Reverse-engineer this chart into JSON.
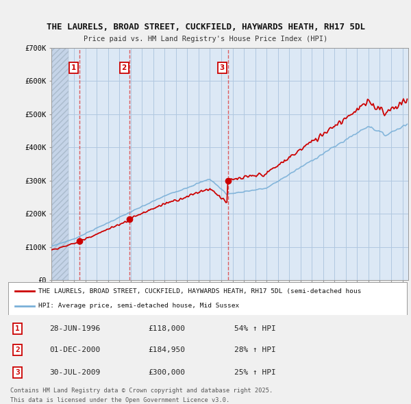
{
  "title_line1": "THE LAURELS, BROAD STREET, CUCKFIELD, HAYWARDS HEATH, RH17 5DL",
  "title_line2": "Price paid vs. HM Land Registry's House Price Index (HPI)",
  "ylim": [
    0,
    700000
  ],
  "yticks": [
    0,
    100000,
    200000,
    300000,
    400000,
    500000,
    600000,
    700000
  ],
  "ytick_labels": [
    "£0",
    "£100K",
    "£200K",
    "£300K",
    "£400K",
    "£500K",
    "£600K",
    "£700K"
  ],
  "xlim_start": 1994.0,
  "xlim_end": 2025.5,
  "price_paid_color": "#cc0000",
  "hpi_color": "#7ab0d8",
  "sale_marker_color": "#cc0000",
  "vline_color": "#dd4444",
  "background_color": "#f0f0f0",
  "plot_bg_color": "#dce8f5",
  "hatch_color": "#c0c8d8",
  "legend_label_red": "THE LAURELS, BROAD STREET, CUCKFIELD, HAYWARDS HEATH, RH17 5DL (semi-detached hous",
  "legend_label_blue": "HPI: Average price, semi-detached house, Mid Sussex",
  "sale_points": [
    {
      "label": "1",
      "date_year": 1996.49,
      "price": 118000
    },
    {
      "label": "2",
      "date_year": 2000.92,
      "price": 184950
    },
    {
      "label": "3",
      "date_year": 2009.58,
      "price": 300000
    }
  ],
  "footer_line1": "Contains HM Land Registry data © Crown copyright and database right 2025.",
  "footer_line2": "This data is licensed under the Open Government Licence v3.0.",
  "table_rows": [
    [
      "1",
      "28-JUN-1996",
      "£118,000",
      "54% ↑ HPI"
    ],
    [
      "2",
      "01-DEC-2000",
      "£184,950",
      "28% ↑ HPI"
    ],
    [
      "3",
      "30-JUL-2009",
      "£300,000",
      "25% ↑ HPI"
    ]
  ]
}
